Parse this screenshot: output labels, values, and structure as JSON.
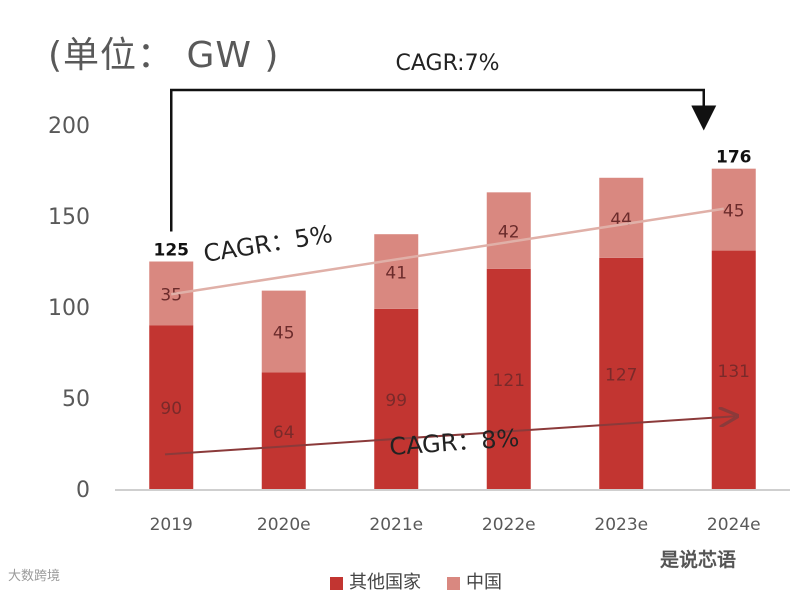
{
  "unit_label": "(单位： GW )",
  "watermark_left": "大数跨境",
  "watermark_right": "是说芯语",
  "colors": {
    "other": "#c23531",
    "china": "#d98880",
    "axis": "#bfbfbf",
    "text": "#595959"
  },
  "chart_data": {
    "type": "bar",
    "stacked": true,
    "categories": [
      "2019",
      "2020e",
      "2021e",
      "2022e",
      "2023e",
      "2024e"
    ],
    "series": [
      {
        "name": "其他国家",
        "values": [
          90,
          64,
          99,
          121,
          127,
          131
        ]
      },
      {
        "name": "中国",
        "values": [
          35,
          45,
          41,
          42,
          44,
          45
        ]
      }
    ],
    "totals": [
      {
        "category": "2019",
        "label": "125"
      },
      {
        "category": "2024e",
        "label": "176"
      }
    ],
    "ylim": [
      0,
      200
    ],
    "yticks": [
      "0",
      "50",
      "100",
      "150",
      "200"
    ],
    "annotations": [
      {
        "text": "CAGR:7%",
        "from": "2019",
        "to": "2024e",
        "kind": "bracket"
      },
      {
        "text": "CAGR：5%",
        "from_value": 107,
        "to_value": 154,
        "kind": "trend-china"
      },
      {
        "text": "CAGR：8%",
        "from_value": 19,
        "to_value": 40,
        "kind": "trend-other"
      }
    ]
  }
}
